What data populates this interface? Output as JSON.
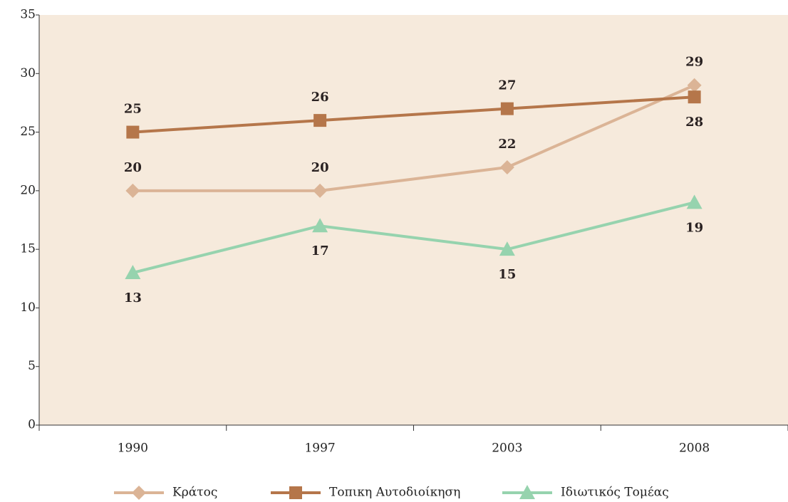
{
  "chart_data": {
    "type": "line",
    "categories": [
      "1990",
      "1997",
      "2003",
      "2008"
    ],
    "series": [
      {
        "name": "Κράτος",
        "color": "#dbb496",
        "marker": "diamond",
        "values": [
          20,
          20,
          22,
          29
        ]
      },
      {
        "name": "Τοπικη Αυτοδιοίκηση",
        "color": "#b5764a",
        "marker": "square",
        "values": [
          25,
          26,
          27,
          28
        ]
      },
      {
        "name": "Ιδιωτικός Τομέας",
        "color": "#96d3ae",
        "marker": "triangle",
        "values": [
          13,
          17,
          15,
          19
        ]
      }
    ],
    "ylim": [
      0,
      35
    ],
    "yticks": [
      0,
      5,
      10,
      15,
      20,
      25,
      30,
      35
    ],
    "legend": "bottom"
  }
}
